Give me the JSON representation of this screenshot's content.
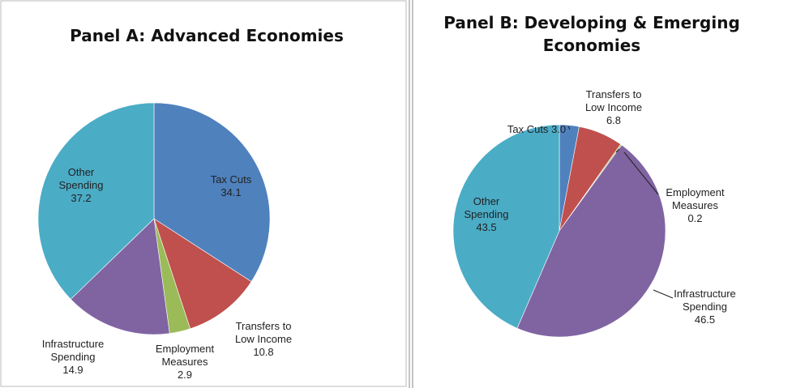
{
  "chart_data": [
    {
      "type": "pie",
      "title": "Panel A: Advanced Economies",
      "categories": [
        "Tax Cuts",
        "Transfers to Low Income",
        "Employment Measures",
        "Infrastructure Spending",
        "Other Spending"
      ],
      "values": [
        34.1,
        10.8,
        2.9,
        14.9,
        37.2
      ],
      "value_labels": [
        "34.1",
        "10.8",
        "2.9",
        "14.9",
        "37.2"
      ],
      "colors": [
        "#4f81bd",
        "#c0504d",
        "#9bbb59",
        "#8064a2",
        "#4bacc6"
      ]
    },
    {
      "type": "pie",
      "title": "Panel B: Developing & Emerging Economies",
      "categories": [
        "Tax Cuts",
        "Transfers to Low Income",
        "Employment Measures",
        "Infrastructure Spending",
        "Other Spending"
      ],
      "values": [
        3.0,
        6.8,
        0.2,
        46.5,
        43.5
      ],
      "value_labels": [
        "3.0",
        "6.8",
        "0.2",
        "46.5",
        "43.5"
      ],
      "colors": [
        "#4f81bd",
        "#c0504d",
        "#9bbb59",
        "#8064a2",
        "#4bacc6"
      ]
    }
  ]
}
